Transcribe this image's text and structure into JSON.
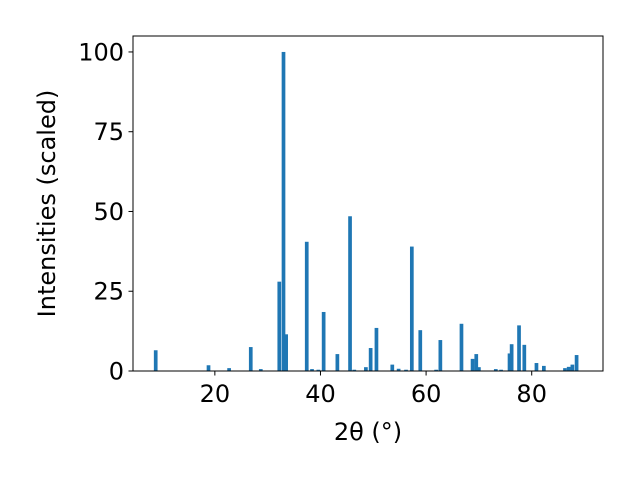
{
  "chart_data": {
    "type": "bar",
    "xlabel": "2θ (°)",
    "ylabel": "Intensities (scaled)",
    "xlim": [
      4.5,
      93.5
    ],
    "ylim": [
      0,
      105
    ],
    "xticks": [
      20,
      40,
      60,
      80
    ],
    "yticks": [
      0,
      25,
      50,
      75,
      100
    ],
    "bar_color": "#1f77b4",
    "bar_width": 0.7,
    "x": [
      8.8,
      18.8,
      22.7,
      26.8,
      28.7,
      32.2,
      33.0,
      33.5,
      37.4,
      38.4,
      39.6,
      40.6,
      43.2,
      45.6,
      46.4,
      48.6,
      49.5,
      50.6,
      53.6,
      54.8,
      56.2,
      57.3,
      58.9,
      61.9,
      62.7,
      66.7,
      68.8,
      69.5,
      70.0,
      73.2,
      74.2,
      75.8,
      76.2,
      77.6,
      78.6,
      80.9,
      82.3,
      86.3,
      87.0,
      87.7,
      88.5
    ],
    "values": [
      6.5,
      1.8,
      0.9,
      7.5,
      0.6,
      28.0,
      100.0,
      11.5,
      40.5,
      0.6,
      0.4,
      18.5,
      5.3,
      48.5,
      0.4,
      1.2,
      7.2,
      13.5,
      2.0,
      0.7,
      0.4,
      39.0,
      12.8,
      0.4,
      9.7,
      14.8,
      3.8,
      5.3,
      1.2,
      0.6,
      0.4,
      5.5,
      8.4,
      14.3,
      8.2,
      2.5,
      1.6,
      0.9,
      1.3,
      2.0,
      5.0
    ]
  }
}
